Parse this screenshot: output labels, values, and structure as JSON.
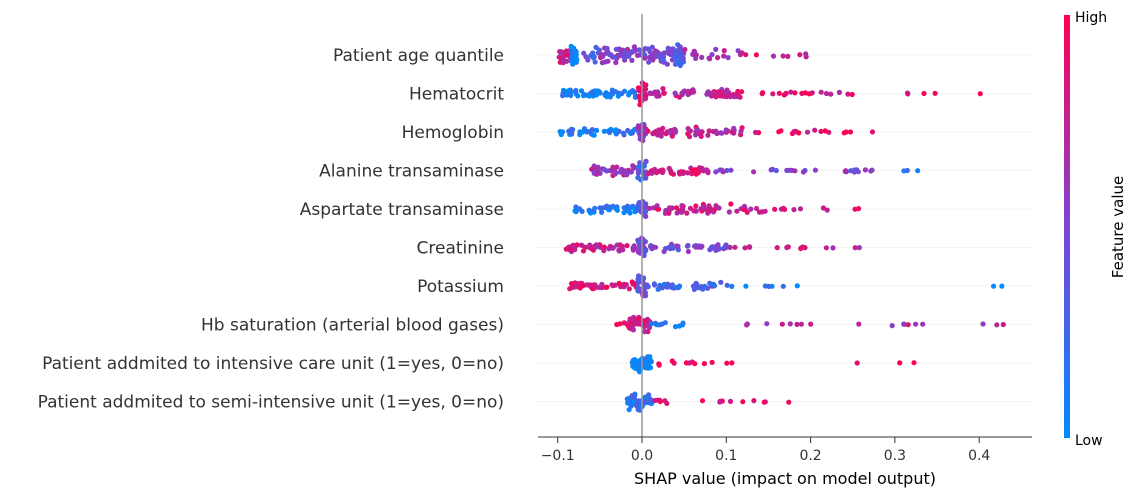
{
  "chart_data": {
    "type": "scatter",
    "subtype": "shap-beeswarm-summary",
    "xlabel": "SHAP value (impact on model output)",
    "xlim": [
      -0.125,
      0.46
    ],
    "xticks": [
      -0.1,
      0.0,
      0.1,
      0.2,
      0.3,
      0.4
    ],
    "xtick_labels": [
      "−0.1",
      "0.0",
      "0.1",
      "0.2",
      "0.3",
      "0.4"
    ],
    "zero_line": true,
    "colorbar": {
      "label": "Feature value",
      "high": "High",
      "low": "Low",
      "colors": [
        "#008bfb",
        "#7e44d4",
        "#ff0052"
      ]
    },
    "features": [
      {
        "name": "Patient age quantile",
        "segments": [
          [
            -0.1,
            -0.085,
            0.8,
            22,
            0.85
          ],
          [
            -0.085,
            -0.075,
            0.05,
            26,
            0.9
          ],
          [
            -0.07,
            -0.05,
            0.3,
            14,
            0.7
          ],
          [
            -0.05,
            -0.02,
            0.55,
            30,
            0.75
          ],
          [
            -0.02,
            0.02,
            0.5,
            36,
            0.8
          ],
          [
            0.02,
            0.04,
            0.45,
            34,
            0.8
          ],
          [
            0.04,
            0.05,
            0.35,
            30,
            0.95
          ],
          [
            0.05,
            0.12,
            0.7,
            18,
            0.5
          ],
          [
            0.12,
            0.2,
            0.8,
            8,
            0.2
          ]
        ]
      },
      {
        "name": "Hematocrit",
        "segments": [
          [
            -0.095,
            -0.005,
            0.08,
            55,
            0.35
          ],
          [
            -0.005,
            0.005,
            0.9,
            28,
            0.95
          ],
          [
            0.005,
            0.12,
            0.75,
            60,
            0.4
          ],
          [
            0.12,
            0.25,
            0.9,
            20,
            0.15
          ],
          [
            0.3,
            0.41,
            0.85,
            5,
            0.05
          ]
        ]
      },
      {
        "name": "Hemoglobin",
        "segments": [
          [
            -0.1,
            -0.005,
            0.1,
            40,
            0.3
          ],
          [
            -0.005,
            0.005,
            0.55,
            26,
            0.95
          ],
          [
            0.005,
            0.12,
            0.75,
            55,
            0.4
          ],
          [
            0.12,
            0.28,
            0.85,
            18,
            0.15
          ]
        ]
      },
      {
        "name": "Alanine transaminase",
        "segments": [
          [
            -0.06,
            -0.005,
            0.6,
            35,
            0.45
          ],
          [
            -0.005,
            0.005,
            0.3,
            26,
            0.95
          ],
          [
            0.005,
            0.08,
            0.85,
            40,
            0.35
          ],
          [
            0.08,
            0.28,
            0.5,
            30,
            0.15
          ],
          [
            0.31,
            0.33,
            0.1,
            3,
            0.05
          ]
        ]
      },
      {
        "name": "Aspartate transaminase",
        "segments": [
          [
            -0.08,
            -0.005,
            0.1,
            40,
            0.35
          ],
          [
            -0.005,
            0.005,
            0.4,
            26,
            0.95
          ],
          [
            0.005,
            0.15,
            0.8,
            55,
            0.45
          ],
          [
            0.15,
            0.27,
            0.8,
            10,
            0.1
          ]
        ]
      },
      {
        "name": "Creatinine",
        "segments": [
          [
            -0.09,
            -0.005,
            0.75,
            45,
            0.35
          ],
          [
            -0.005,
            0.005,
            0.45,
            26,
            0.95
          ],
          [
            0.005,
            0.1,
            0.45,
            45,
            0.35
          ],
          [
            0.1,
            0.27,
            0.7,
            15,
            0.1
          ]
        ]
      },
      {
        "name": "Potassium",
        "segments": [
          [
            -0.09,
            -0.005,
            0.85,
            45,
            0.35
          ],
          [
            -0.005,
            0.005,
            0.45,
            26,
            0.95
          ],
          [
            0.005,
            0.1,
            0.3,
            40,
            0.3
          ],
          [
            0.1,
            0.2,
            0.15,
            8,
            0.1
          ],
          [
            0.38,
            0.43,
            0.1,
            2,
            0.05
          ]
        ]
      },
      {
        "name": "Hb saturation (arterial blood gases)",
        "segments": [
          [
            -0.03,
            -0.015,
            0.9,
            6,
            0.3
          ],
          [
            -0.015,
            0.01,
            0.8,
            40,
            0.8
          ],
          [
            0.01,
            0.05,
            0.15,
            10,
            0.3
          ],
          [
            0.1,
            0.22,
            0.65,
            8,
            0.1
          ],
          [
            0.25,
            0.44,
            0.7,
            10,
            0.1
          ]
        ]
      },
      {
        "name": "Patient addmited to intensive care unit (1=yes, 0=no)",
        "segments": [
          [
            -0.012,
            0.012,
            0.05,
            50,
            0.75
          ],
          [
            0.015,
            0.11,
            0.95,
            12,
            0.2
          ],
          [
            0.16,
            0.37,
            0.95,
            3,
            0.05
          ]
        ]
      },
      {
        "name": "Patient addmited to semi-intensive unit (1=yes, 0=no)",
        "segments": [
          [
            -0.018,
            0.012,
            0.15,
            45,
            0.8
          ],
          [
            0.012,
            0.03,
            0.85,
            6,
            0.3
          ],
          [
            0.04,
            0.18,
            0.9,
            10,
            0.1
          ]
        ]
      }
    ]
  }
}
